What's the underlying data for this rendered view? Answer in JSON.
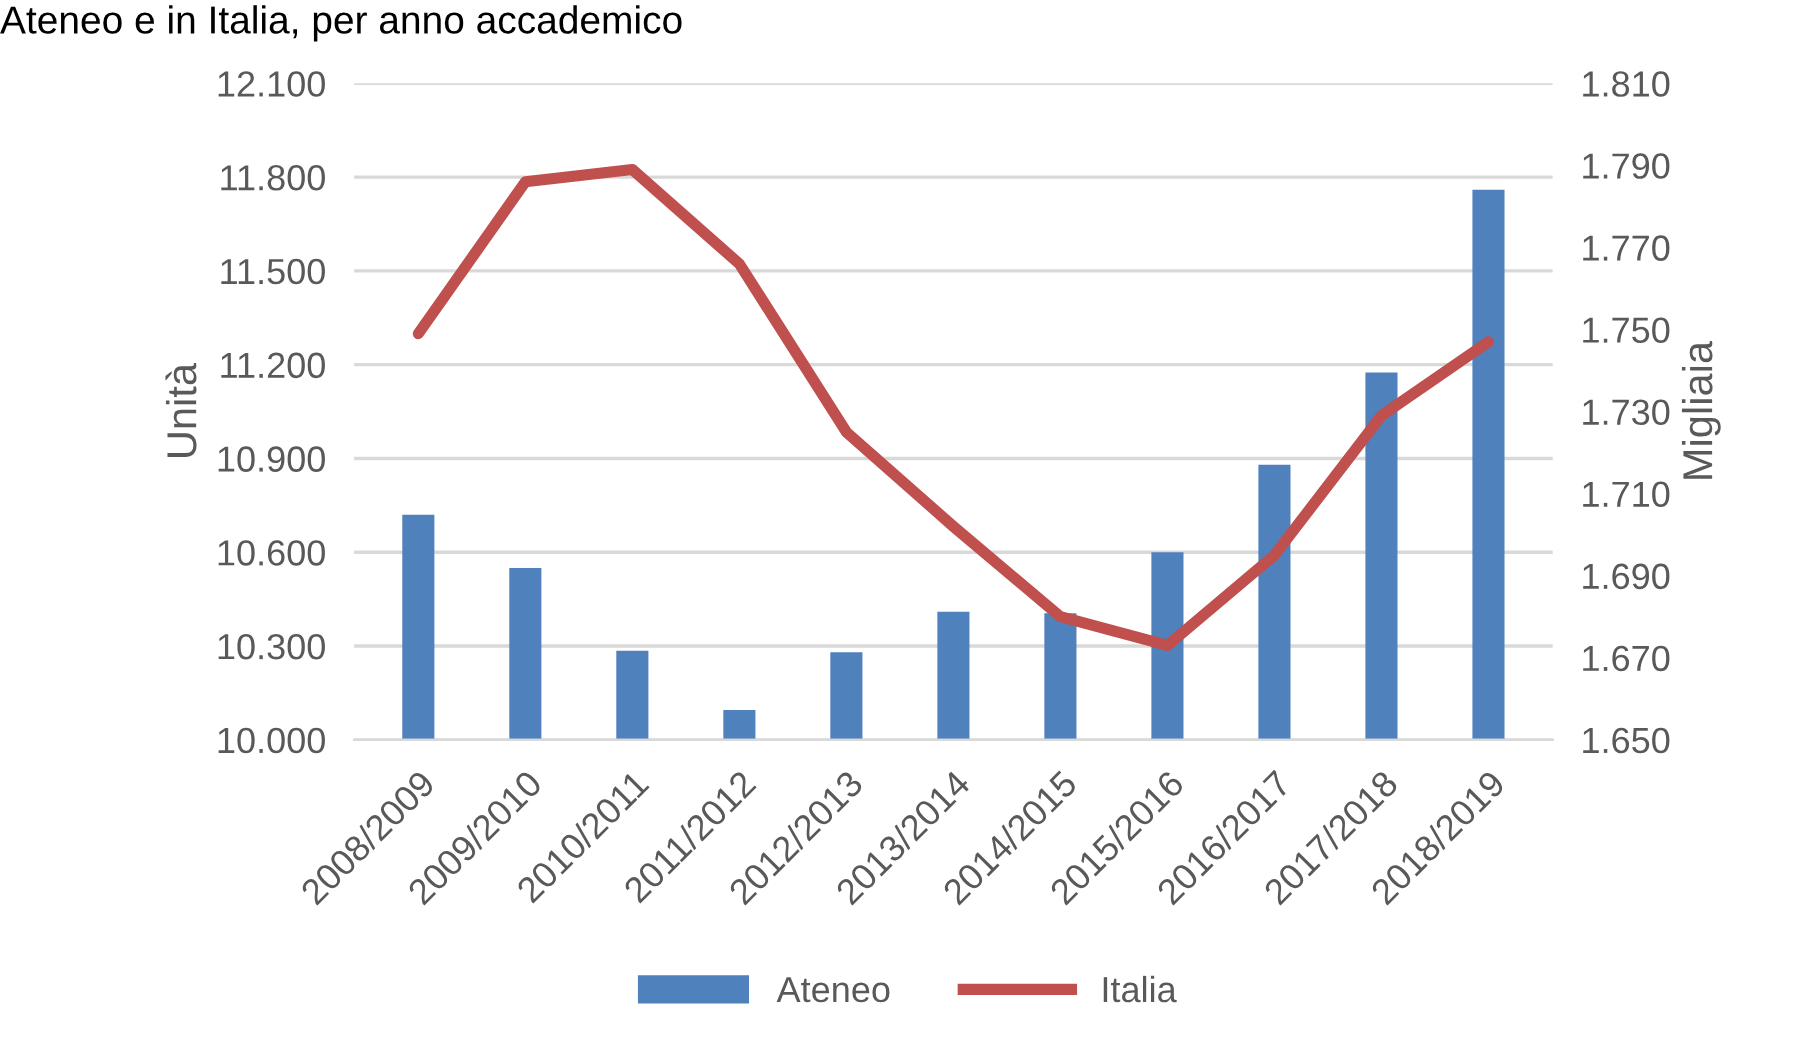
{
  "chart_data": {
    "type": "bar",
    "title": "Ateneo e in Italia, per anno accademico",
    "ylabel": "Unità",
    "y2label": "Migliaia",
    "categories": [
      "2008/2009",
      "2009/2010",
      "2010/2011",
      "2011/2012",
      "2012/2013",
      "2013/2014",
      "2014/2015",
      "2015/2016",
      "2016/2017",
      "2017/2018",
      "2018/2019"
    ],
    "series": [
      {
        "name": "Ateneo",
        "color": "#4f81bd",
        "values": [
          10720,
          10550,
          10285,
          10095,
          10280,
          10410,
          10405,
          10600,
          10880,
          11175,
          11760
        ]
      },
      {
        "name": "Italia",
        "type": "line",
        "axis": "y2",
        "color": "#c0504d",
        "values": [
          1749,
          1786,
          1789,
          1766,
          1725,
          1702,
          1680,
          1673,
          1695,
          1729,
          1747
        ]
      }
    ],
    "ylim": [
      10000,
      12100
    ],
    "yticks": [
      {
        "value": 10000,
        "label": "10.000"
      },
      {
        "value": 10300,
        "label": "10.300"
      },
      {
        "value": 10600,
        "label": "10.600"
      },
      {
        "value": 10900,
        "label": "10.900"
      },
      {
        "value": 11200,
        "label": "11.200"
      },
      {
        "value": 11500,
        "label": "11.500"
      },
      {
        "value": 11800,
        "label": "11.800"
      },
      {
        "value": 12100,
        "label": "12.100"
      }
    ],
    "y2lim": [
      1650,
      1810
    ],
    "y2ticks": [
      {
        "value": 1650,
        "label": "1.650"
      },
      {
        "value": 1670,
        "label": "1.670"
      },
      {
        "value": 1690,
        "label": "1.690"
      },
      {
        "value": 1710,
        "label": "1.710"
      },
      {
        "value": 1730,
        "label": "1.730"
      },
      {
        "value": 1750,
        "label": "1.750"
      },
      {
        "value": 1770,
        "label": "1.770"
      },
      {
        "value": 1790,
        "label": "1.790"
      },
      {
        "value": 1810,
        "label": "1.810"
      }
    ],
    "grid": "y",
    "legend": "bottom",
    "marker": "none",
    "line_style": "solid"
  }
}
